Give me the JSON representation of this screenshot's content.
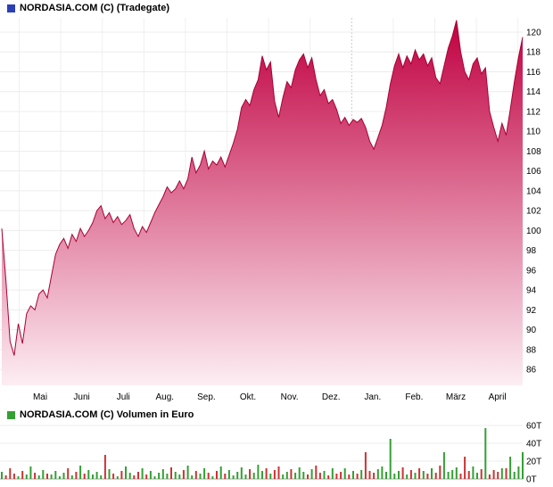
{
  "header": {
    "title": "NORDASIA.COM (C) (Tradegate)",
    "marker_color": "#2a3fb8"
  },
  "volume_header": {
    "title": "NORDASIA.COM (C) Volumen in Euro",
    "marker_color": "#33a033"
  },
  "chart_data": [
    {
      "type": "area",
      "title": "NORDASIA.COM (C) (Tradegate)",
      "x_labels": [
        "Mai",
        "Juni",
        "Juli",
        "Aug.",
        "Sep.",
        "Okt.",
        "Nov.",
        "Dez.",
        "Jan.",
        "Feb.",
        "März",
        "April"
      ],
      "y_ticks": [
        120,
        118,
        116,
        114,
        112,
        110,
        108,
        106,
        104,
        102,
        100,
        98,
        96,
        94,
        92,
        90,
        88,
        86
      ],
      "ylim": [
        84.5,
        121.5
      ],
      "grid": true,
      "legend_position": "none",
      "line_color": "#a80233",
      "fill_top": "#c00040",
      "fill_bottom": "#fdeef3",
      "values": [
        100.2,
        95.0,
        88.8,
        87.4,
        90.6,
        88.6,
        91.6,
        92.4,
        92.0,
        93.6,
        94.0,
        93.2,
        95.4,
        97.6,
        98.6,
        99.2,
        98.2,
        99.6,
        98.9,
        100.2,
        99.4,
        100.0,
        100.8,
        102.0,
        102.5,
        101.2,
        101.8,
        100.8,
        101.4,
        100.6,
        101.0,
        101.6,
        100.2,
        99.4,
        100.4,
        99.8,
        100.8,
        101.8,
        102.6,
        103.4,
        104.4,
        103.8,
        104.2,
        105.0,
        104.2,
        105.2,
        107.4,
        105.8,
        106.6,
        108.0,
        106.2,
        107.0,
        106.6,
        107.4,
        106.4,
        107.6,
        108.8,
        110.2,
        112.4,
        113.2,
        112.6,
        114.2,
        115.2,
        117.6,
        116.2,
        117.0,
        113.0,
        111.4,
        113.4,
        115.0,
        114.4,
        116.2,
        117.2,
        117.8,
        116.4,
        117.4,
        115.2,
        113.6,
        114.2,
        112.8,
        113.2,
        112.2,
        110.8,
        111.4,
        110.6,
        111.2,
        110.9,
        111.3,
        110.4,
        109.0,
        108.2,
        109.4,
        110.6,
        112.4,
        114.8,
        116.6,
        117.8,
        116.4,
        117.6,
        116.8,
        118.2,
        117.2,
        117.8,
        116.6,
        117.4,
        115.4,
        114.8,
        116.6,
        118.4,
        119.6,
        121.2,
        118.0,
        116.0,
        115.2,
        116.8,
        117.4,
        115.8,
        116.4,
        112.0,
        110.4,
        109.0,
        110.8,
        109.6,
        112.2,
        115.0,
        117.5,
        119.5
      ]
    },
    {
      "type": "bar",
      "title": "NORDASIA.COM (C) Volumen in Euro",
      "unit": "T",
      "y_tick_values": [
        0,
        20,
        40,
        60
      ],
      "y_tick_labels": [
        "0T",
        "20T",
        "40T",
        "60T"
      ],
      "ylim": [
        0,
        64
      ],
      "up_color": "#33a033",
      "down_color": "#cc3333",
      "values": [
        8,
        4,
        12,
        6,
        3,
        9,
        5,
        14,
        7,
        4,
        10,
        6,
        5,
        9,
        3,
        7,
        12,
        4,
        8,
        15,
        6,
        10,
        5,
        8,
        4,
        27,
        11,
        6,
        3,
        9,
        14,
        7,
        4,
        8,
        12,
        5,
        9,
        3,
        7,
        11,
        6,
        13,
        8,
        5,
        10,
        15,
        4,
        9,
        6,
        12,
        7,
        3,
        9,
        14,
        6,
        10,
        4,
        8,
        13,
        5,
        11,
        7,
        16,
        9,
        12,
        6,
        10,
        14,
        5,
        8,
        11,
        7,
        13,
        8,
        5,
        11,
        15,
        7,
        9,
        4,
        12,
        6,
        8,
        12,
        5,
        9,
        6,
        10,
        30,
        9,
        7,
        11,
        14,
        8,
        45,
        6,
        9,
        13,
        5,
        10,
        7,
        12,
        9,
        6,
        12,
        7,
        15,
        30,
        8,
        10,
        13,
        6,
        25,
        9,
        14,
        7,
        11,
        57,
        5,
        10,
        8,
        12,
        12,
        25,
        8,
        14,
        30
      ]
    }
  ]
}
